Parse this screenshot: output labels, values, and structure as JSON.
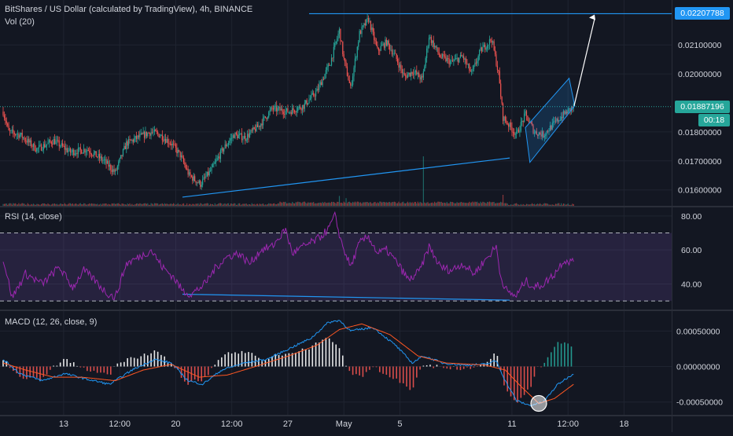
{
  "window": {
    "title": "BitShares / US Dollar (calculated by TradingView), 4h, BINANCE",
    "volume_legend": "Vol (20)"
  },
  "colors": {
    "background": "#131722",
    "grid": "#1f2430",
    "bull": "#26a69a",
    "bear": "#ef5350",
    "drawing": "#2196f3",
    "rsi": "#9c27b0",
    "macd": "#2196f3",
    "signal": "#ff5722",
    "axis_text": "#d1d4dc"
  },
  "price_axis": {
    "ticks": [
      "0.02100000",
      "0.02000000",
      "0.01800000",
      "0.01700000",
      "0.01600000"
    ],
    "tick_values": [
      0.021,
      0.02,
      0.018,
      0.017,
      0.016
    ],
    "range": [
      0.01545,
      0.02255
    ],
    "target_label": "0.02207788",
    "target_value": 0.02207788,
    "last_label": "0.01887196",
    "last_value": 0.01887196,
    "countdown": "00:18"
  },
  "rsi_panel": {
    "legend": "RSI (14, close)",
    "ticks": [
      "80.00",
      "60.00",
      "40.00"
    ],
    "tick_values": [
      80,
      60,
      40
    ],
    "range": [
      25,
      85
    ],
    "band_upper": 70,
    "band_lower": 30
  },
  "macd_panel": {
    "legend": "MACD (12, 26, close, 9)",
    "ticks": [
      "0.00050000",
      "0.00000000",
      "-0.00050000"
    ],
    "tick_values": [
      0.0005,
      0,
      -0.0005
    ],
    "range": [
      -0.00068,
      0.00078
    ]
  },
  "time_axis": {
    "labels": [
      "13",
      "12:00",
      "20",
      "12:00",
      "27",
      "May",
      "5",
      "11",
      "12:00",
      "18"
    ],
    "bar_index": [
      54,
      104,
      154,
      204,
      254,
      304,
      354,
      454,
      504,
      554
    ]
  },
  "chart_data": [
    {
      "type": "candlestick",
      "title": "BitShares / US Dollar (calculated by TradingView), 4h, BINANCE",
      "ylim": [
        0.01545,
        0.02255
      ],
      "bars": 510,
      "anchors": [
        {
          "i": 0,
          "close": 0.0187
        },
        {
          "i": 5,
          "close": 0.018
        },
        {
          "i": 15,
          "close": 0.0179
        },
        {
          "i": 30,
          "close": 0.0174
        },
        {
          "i": 45,
          "close": 0.0177
        },
        {
          "i": 60,
          "close": 0.0173
        },
        {
          "i": 75,
          "close": 0.0174
        },
        {
          "i": 90,
          "close": 0.017
        },
        {
          "i": 100,
          "close": 0.0166
        },
        {
          "i": 110,
          "close": 0.0176
        },
        {
          "i": 120,
          "close": 0.0178
        },
        {
          "i": 132,
          "close": 0.018
        },
        {
          "i": 140,
          "close": 0.0179
        },
        {
          "i": 150,
          "close": 0.0176
        },
        {
          "i": 158,
          "close": 0.0172
        },
        {
          "i": 166,
          "close": 0.0165
        },
        {
          "i": 176,
          "close": 0.0162
        },
        {
          "i": 186,
          "close": 0.0167
        },
        {
          "i": 196,
          "close": 0.0174
        },
        {
          "i": 206,
          "close": 0.0179
        },
        {
          "i": 216,
          "close": 0.0178
        },
        {
          "i": 228,
          "close": 0.0182
        },
        {
          "i": 240,
          "close": 0.0188
        },
        {
          "i": 255,
          "close": 0.0187
        },
        {
          "i": 268,
          "close": 0.0189
        },
        {
          "i": 280,
          "close": 0.0194
        },
        {
          "i": 292,
          "close": 0.0204
        },
        {
          "i": 300,
          "close": 0.0215
        },
        {
          "i": 304,
          "close": 0.0205
        },
        {
          "i": 310,
          "close": 0.0195
        },
        {
          "i": 318,
          "close": 0.0214
        },
        {
          "i": 326,
          "close": 0.0219
        },
        {
          "i": 334,
          "close": 0.0208
        },
        {
          "i": 342,
          "close": 0.0211
        },
        {
          "i": 350,
          "close": 0.0206
        },
        {
          "i": 358,
          "close": 0.0199
        },
        {
          "i": 366,
          "close": 0.0201
        },
        {
          "i": 374,
          "close": 0.0198
        },
        {
          "i": 380,
          "close": 0.0213
        },
        {
          "i": 390,
          "close": 0.0206
        },
        {
          "i": 400,
          "close": 0.0204
        },
        {
          "i": 410,
          "close": 0.0206
        },
        {
          "i": 418,
          "close": 0.02
        },
        {
          "i": 426,
          "close": 0.0208
        },
        {
          "i": 436,
          "close": 0.0212
        },
        {
          "i": 442,
          "close": 0.02
        },
        {
          "i": 446,
          "close": 0.0185
        },
        {
          "i": 452,
          "close": 0.0182
        },
        {
          "i": 458,
          "close": 0.0179
        },
        {
          "i": 466,
          "close": 0.0186
        },
        {
          "i": 474,
          "close": 0.018
        },
        {
          "i": 482,
          "close": 0.0179
        },
        {
          "i": 492,
          "close": 0.0183
        },
        {
          "i": 500,
          "close": 0.0186
        },
        {
          "i": 509,
          "close": 0.01887
        }
      ],
      "volume_spikes": [
        {
          "i": 300,
          "rel": 0.18
        },
        {
          "i": 306,
          "rel": 0.14
        },
        {
          "i": 375,
          "rel": 0.9
        },
        {
          "i": 446,
          "rel": 0.2
        }
      ]
    },
    {
      "type": "line",
      "title": "RSI (14, close)",
      "ylim": [
        25,
        85
      ],
      "anchors": [
        {
          "i": 0,
          "v": 55
        },
        {
          "i": 8,
          "v": 32
        },
        {
          "i": 20,
          "v": 46
        },
        {
          "i": 35,
          "v": 40
        },
        {
          "i": 50,
          "v": 50
        },
        {
          "i": 62,
          "v": 38
        },
        {
          "i": 72,
          "v": 48
        },
        {
          "i": 82,
          "v": 42
        },
        {
          "i": 92,
          "v": 35
        },
        {
          "i": 100,
          "v": 32
        },
        {
          "i": 110,
          "v": 52
        },
        {
          "i": 122,
          "v": 56
        },
        {
          "i": 132,
          "v": 60
        },
        {
          "i": 142,
          "v": 50
        },
        {
          "i": 152,
          "v": 44
        },
        {
          "i": 160,
          "v": 36
        },
        {
          "i": 168,
          "v": 34
        },
        {
          "i": 180,
          "v": 40
        },
        {
          "i": 190,
          "v": 50
        },
        {
          "i": 200,
          "v": 56
        },
        {
          "i": 210,
          "v": 58
        },
        {
          "i": 220,
          "v": 52
        },
        {
          "i": 230,
          "v": 60
        },
        {
          "i": 240,
          "v": 62
        },
        {
          "i": 252,
          "v": 72
        },
        {
          "i": 258,
          "v": 58
        },
        {
          "i": 268,
          "v": 62
        },
        {
          "i": 280,
          "v": 66
        },
        {
          "i": 290,
          "v": 72
        },
        {
          "i": 296,
          "v": 80
        },
        {
          "i": 302,
          "v": 64
        },
        {
          "i": 310,
          "v": 50
        },
        {
          "i": 318,
          "v": 64
        },
        {
          "i": 326,
          "v": 68
        },
        {
          "i": 334,
          "v": 58
        },
        {
          "i": 342,
          "v": 60
        },
        {
          "i": 352,
          "v": 52
        },
        {
          "i": 362,
          "v": 42
        },
        {
          "i": 372,
          "v": 48
        },
        {
          "i": 380,
          "v": 62
        },
        {
          "i": 390,
          "v": 50
        },
        {
          "i": 400,
          "v": 48
        },
        {
          "i": 410,
          "v": 52
        },
        {
          "i": 420,
          "v": 46
        },
        {
          "i": 430,
          "v": 54
        },
        {
          "i": 440,
          "v": 62
        },
        {
          "i": 444,
          "v": 44
        },
        {
          "i": 450,
          "v": 35
        },
        {
          "i": 458,
          "v": 33
        },
        {
          "i": 466,
          "v": 42
        },
        {
          "i": 474,
          "v": 38
        },
        {
          "i": 482,
          "v": 40
        },
        {
          "i": 492,
          "v": 46
        },
        {
          "i": 500,
          "v": 54
        },
        {
          "i": 509,
          "v": 53
        }
      ]
    },
    {
      "type": "line",
      "title": "MACD (12, 26, close, 9)",
      "ylim": [
        -0.00068,
        0.00078
      ],
      "macd_anchors": [
        {
          "i": 0,
          "v": 0.0001
        },
        {
          "i": 15,
          "v": -0.0001
        },
        {
          "i": 35,
          "v": -0.0002
        },
        {
          "i": 55,
          "v": -0.0001
        },
        {
          "i": 75,
          "v": -0.00018
        },
        {
          "i": 95,
          "v": -0.00025
        },
        {
          "i": 115,
          "v": -5e-05
        },
        {
          "i": 135,
          "v": 0.0001
        },
        {
          "i": 150,
          "v": 5e-05
        },
        {
          "i": 165,
          "v": -0.0002
        },
        {
          "i": 178,
          "v": -0.00025
        },
        {
          "i": 195,
          "v": -5e-05
        },
        {
          "i": 215,
          "v": 5e-05
        },
        {
          "i": 235,
          "v": 0.0001
        },
        {
          "i": 255,
          "v": 0.00025
        },
        {
          "i": 275,
          "v": 0.0004
        },
        {
          "i": 290,
          "v": 0.00062
        },
        {
          "i": 300,
          "v": 0.00065
        },
        {
          "i": 310,
          "v": 0.0005
        },
        {
          "i": 330,
          "v": 0.00055
        },
        {
          "i": 350,
          "v": 0.0003
        },
        {
          "i": 365,
          "v": 5e-05
        },
        {
          "i": 375,
          "v": 0.00015
        },
        {
          "i": 392,
          "v": 5e-05
        },
        {
          "i": 410,
          "v": 2e-05
        },
        {
          "i": 430,
          "v": 3e-05
        },
        {
          "i": 440,
          "v": 8e-05
        },
        {
          "i": 448,
          "v": -0.0002
        },
        {
          "i": 458,
          "v": -0.00048
        },
        {
          "i": 470,
          "v": -0.00055
        },
        {
          "i": 482,
          "v": -0.0005
        },
        {
          "i": 495,
          "v": -0.00025
        },
        {
          "i": 509,
          "v": -0.0001
        }
      ],
      "signal_anchors": [
        {
          "i": 0,
          "v": 5e-05
        },
        {
          "i": 20,
          "v": -5e-05
        },
        {
          "i": 45,
          "v": -0.00015
        },
        {
          "i": 70,
          "v": -0.00015
        },
        {
          "i": 100,
          "v": -0.0002
        },
        {
          "i": 125,
          "v": -5e-05
        },
        {
          "i": 150,
          "v": 3e-05
        },
        {
          "i": 175,
          "v": -0.00015
        },
        {
          "i": 200,
          "v": -0.00012
        },
        {
          "i": 225,
          "v": 0.0
        },
        {
          "i": 255,
          "v": 0.00015
        },
        {
          "i": 280,
          "v": 0.0003
        },
        {
          "i": 300,
          "v": 0.00052
        },
        {
          "i": 320,
          "v": 0.0006
        },
        {
          "i": 345,
          "v": 0.00045
        },
        {
          "i": 370,
          "v": 0.00015
        },
        {
          "i": 395,
          "v": 5e-05
        },
        {
          "i": 430,
          "v": 2e-05
        },
        {
          "i": 448,
          "v": -5e-05
        },
        {
          "i": 462,
          "v": -0.00028
        },
        {
          "i": 478,
          "v": -0.00052
        },
        {
          "i": 492,
          "v": -0.00045
        },
        {
          "i": 509,
          "v": -0.00025
        }
      ]
    }
  ]
}
